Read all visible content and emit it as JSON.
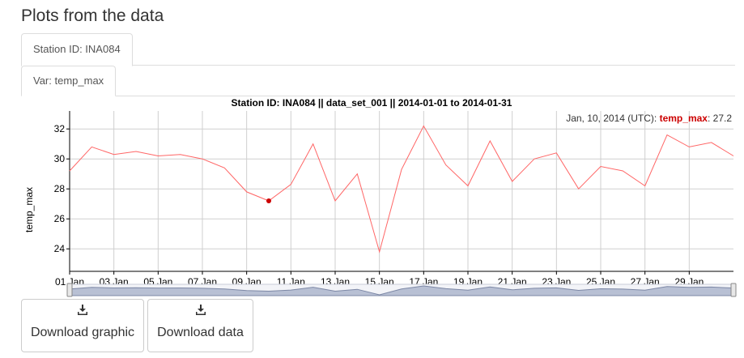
{
  "page": {
    "title": "Plots from the data"
  },
  "tabs": {
    "station": {
      "label": "Station ID: INA084"
    },
    "variable": {
      "label": "Var: temp_max"
    }
  },
  "chart_data": {
    "type": "line",
    "title": "Station ID: INA084 || data_set_001 || 2014-01-01 to 2014-01-31",
    "xlabel": "",
    "ylabel": "temp_max",
    "x": [
      "2014-01-01",
      "2014-01-02",
      "2014-01-03",
      "2014-01-04",
      "2014-01-05",
      "2014-01-06",
      "2014-01-07",
      "2014-01-08",
      "2014-01-09",
      "2014-01-10",
      "2014-01-11",
      "2014-01-12",
      "2014-01-13",
      "2014-01-14",
      "2014-01-15",
      "2014-01-16",
      "2014-01-17",
      "2014-01-18",
      "2014-01-19",
      "2014-01-20",
      "2014-01-21",
      "2014-01-22",
      "2014-01-23",
      "2014-01-24",
      "2014-01-25",
      "2014-01-26",
      "2014-01-27",
      "2014-01-28",
      "2014-01-29",
      "2014-01-30",
      "2014-01-31"
    ],
    "series": [
      {
        "name": "temp_max",
        "color": "#ff6666",
        "values": [
          29.2,
          30.8,
          30.3,
          30.5,
          30.2,
          30.3,
          30.0,
          29.4,
          27.8,
          27.2,
          28.3,
          31.0,
          27.2,
          29.0,
          23.8,
          29.3,
          32.2,
          29.6,
          28.2,
          31.2,
          28.5,
          30.0,
          30.4,
          28.0,
          29.5,
          29.2,
          28.2,
          31.6,
          30.8,
          31.1,
          30.2
        ]
      }
    ],
    "ylim": [
      22.5,
      33.2
    ],
    "yticks": [
      24,
      26,
      28,
      30,
      32
    ],
    "xtick_labels": [
      "01 Jan",
      "03 Jan",
      "05 Jan",
      "07 Jan",
      "09 Jan",
      "11 Jan",
      "13 Jan",
      "15 Jan",
      "17 Jan",
      "19 Jan",
      "21 Jan",
      "23 Jan",
      "25 Jan",
      "27 Jan",
      "29 Jan"
    ],
    "grid": true,
    "highlight": {
      "index": 9,
      "color": "#cc0000"
    },
    "legend": {
      "date": "Jan, 10, 2014 (UTC):",
      "series": "temp_max",
      "value": "27.2",
      "series_color": "#cc0000",
      "placement": "top-right"
    },
    "range_selector": {
      "enabled": true
    }
  },
  "buttons": {
    "download_graphic": {
      "label": "Download graphic",
      "icon": "download-icon"
    },
    "download_data": {
      "label": "Download data",
      "icon": "download-icon"
    }
  }
}
